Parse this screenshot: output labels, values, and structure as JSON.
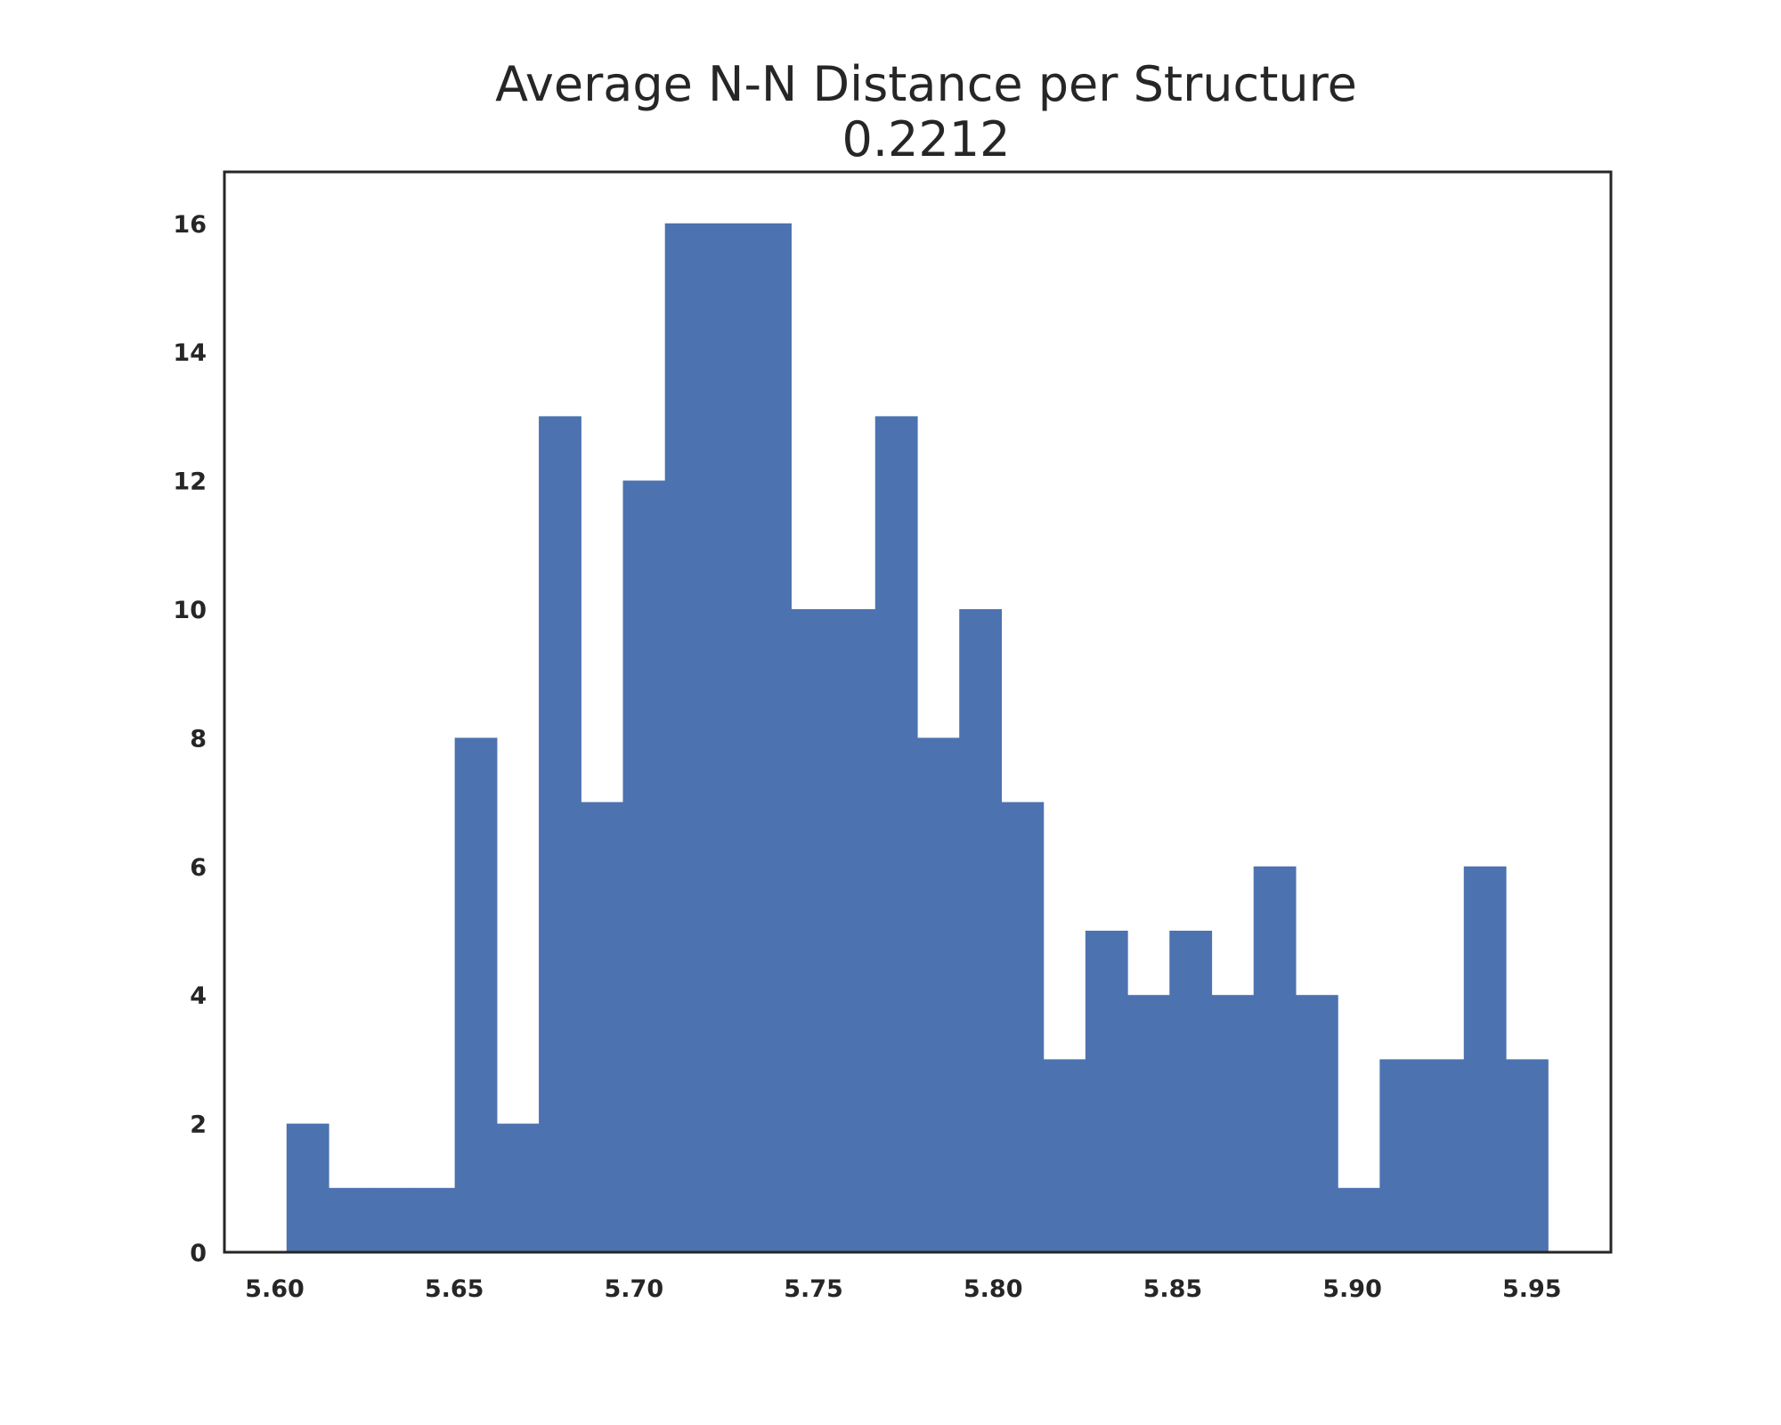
{
  "chart_data": {
    "type": "bar",
    "title": "Average N-N Distance per Structure",
    "subtitle": "0.2212",
    "xlabel": "",
    "ylabel": "",
    "x_ticks": [
      "5.60",
      "5.65",
      "5.70",
      "5.75",
      "5.80",
      "5.85",
      "5.90",
      "5.95"
    ],
    "y_ticks": [
      "0",
      "2",
      "4",
      "6",
      "8",
      "10",
      "12",
      "14",
      "16"
    ],
    "xlim": [
      5.586,
      5.972
    ],
    "ylim": [
      0,
      16.8
    ],
    "bins": {
      "start": 5.6033,
      "width": 0.011705,
      "counts": [
        2,
        1,
        1,
        1,
        8,
        2,
        13,
        7,
        12,
        16,
        16,
        16,
        10,
        10,
        13,
        8,
        10,
        7,
        3,
        5,
        4,
        5,
        4,
        6,
        4,
        1,
        3,
        3,
        6,
        3
      ]
    },
    "grid": false,
    "legend": "none",
    "colors": {
      "bar": "#4c72b0",
      "frame": "#262626",
      "text": "#262626"
    }
  }
}
